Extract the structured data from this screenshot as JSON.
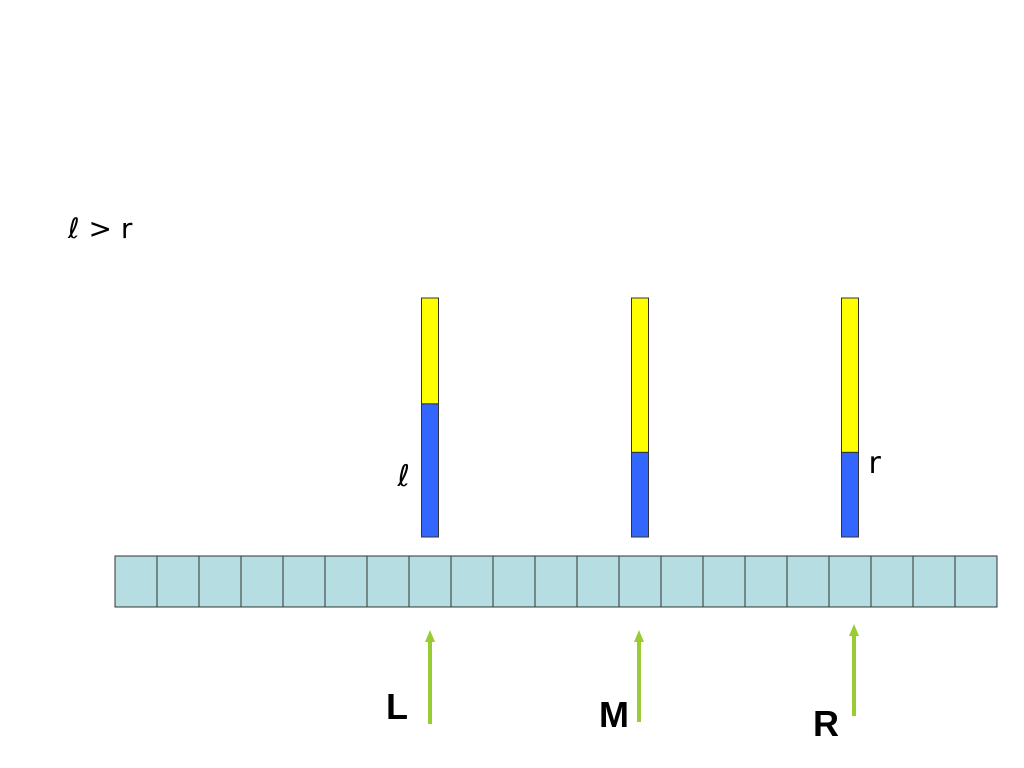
{
  "caption": "ℓ > r",
  "array": {
    "cell_count": 21,
    "cell_color": "#b5dde2",
    "border_color": "#333333"
  },
  "bars": [
    {
      "id": "L",
      "cell_index": 7,
      "side_label": "ℓ",
      "blue_fraction": 0.557,
      "label_side": "left"
    },
    {
      "id": "M",
      "cell_index": 12,
      "side_label": "",
      "blue_fraction": 0.354,
      "label_side": ""
    },
    {
      "id": "R",
      "cell_index": 17,
      "side_label": "r",
      "blue_fraction": 0.354,
      "label_side": "right"
    }
  ],
  "bar_colors": {
    "top": "#ffff00",
    "bottom": "#3366ff"
  },
  "pointers": [
    {
      "label": "L",
      "cell_index": 7
    },
    {
      "label": "M",
      "cell_index": 12
    },
    {
      "label": "R",
      "cell_index": 17
    }
  ],
  "arrow_color": "#99cc33"
}
